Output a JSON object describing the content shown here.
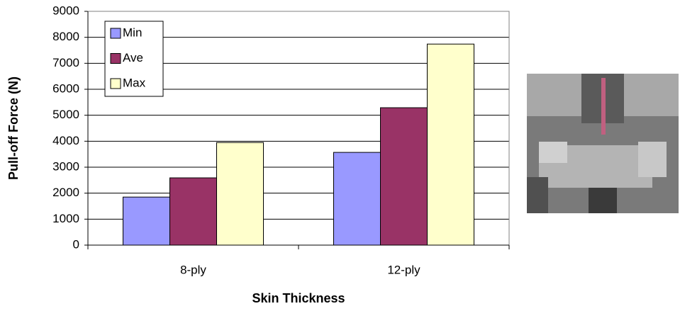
{
  "chart_data": {
    "type": "bar",
    "x_label": "Skin Thickness",
    "y_label": "Pull-off Force (N)",
    "categories": [
      "8-ply",
      "12-ply"
    ],
    "series": [
      {
        "name": "Min",
        "color": "#9999ff",
        "values": [
          1850,
          3570
        ]
      },
      {
        "name": "Ave",
        "color": "#993366",
        "values": [
          2590,
          5290
        ]
      },
      {
        "name": "Max",
        "color": "#ffffcc",
        "values": [
          3950,
          7740
        ]
      }
    ],
    "ylim": [
      0,
      9000
    ],
    "yticks": [
      0,
      1000,
      2000,
      3000,
      4000,
      5000,
      6000,
      7000,
      8000,
      9000
    ],
    "grid": true,
    "legend": "upper left"
  }
}
